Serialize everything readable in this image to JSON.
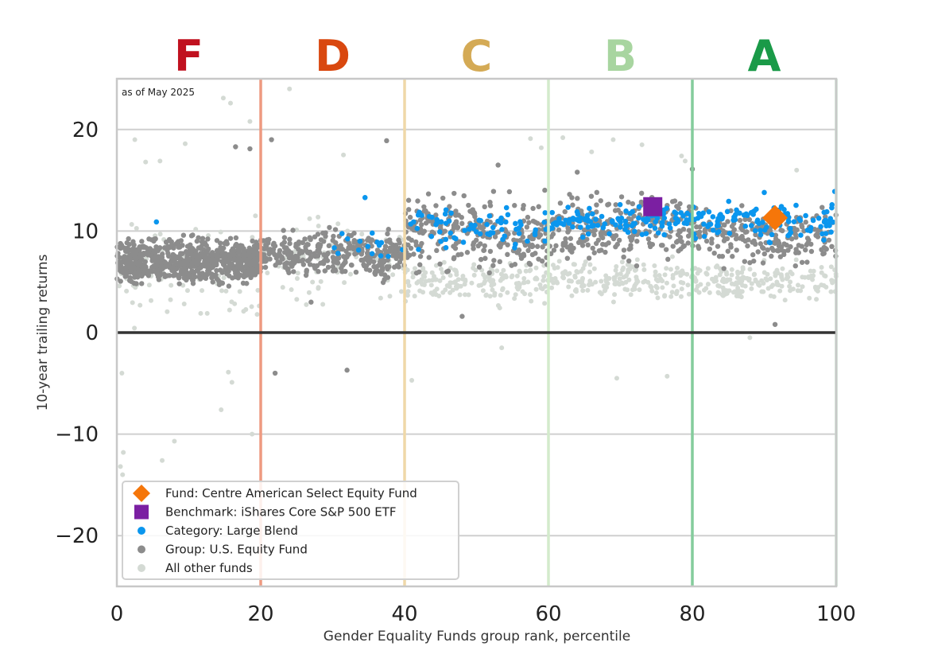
{
  "chart_data": {
    "type": "scatter",
    "annotation": "as of May 2025",
    "xlabel": "Gender Equality Funds group rank, percentile",
    "ylabel": "10-year trailing returns",
    "xlim": [
      0,
      100
    ],
    "ylim": [
      -25,
      25
    ],
    "x_ticks": [
      0,
      20,
      40,
      60,
      80,
      100
    ],
    "y_ticks": [
      -20,
      -10,
      0,
      10,
      20
    ],
    "grid": "horizontal",
    "legend_position": "lower-left",
    "grade_bands": [
      {
        "label": "F",
        "from": 0,
        "to": 20,
        "color": "#c0111f"
      },
      {
        "label": "D",
        "from": 20,
        "to": 40,
        "color": "#d9480f"
      },
      {
        "label": "C",
        "from": 40,
        "to": 60,
        "color": "#d4aa55"
      },
      {
        "label": "B",
        "from": 60,
        "to": 80,
        "color": "#a8d5a0"
      },
      {
        "label": "A",
        "from": 80,
        "to": 100,
        "color": "#1a9a48"
      }
    ],
    "band_lines": [
      {
        "x": 20,
        "color": "#ee9a80"
      },
      {
        "x": 40,
        "color": "#efd8a8"
      },
      {
        "x": 60,
        "color": "#d3ebcc"
      },
      {
        "x": 80,
        "color": "#84cc9c"
      },
      {
        "x": 100,
        "color": "#c8e2cf"
      }
    ],
    "series": [
      {
        "name": "Fund: Centre American Select Equity Fund",
        "marker": "diamond",
        "color": "#f5760a",
        "points": [
          [
            91.5,
            11.3
          ]
        ]
      },
      {
        "name": "Benchmark: iShares Core S&P 500 ETF",
        "marker": "square",
        "color": "#7b1fa2",
        "points": [
          [
            74.5,
            12.4
          ]
        ]
      },
      {
        "name": "Category: Large Blend",
        "marker": "dot",
        "color": "#0a96ee",
        "clusters": [
          {
            "x": [
              29,
              40
            ],
            "y": [
              6,
              10.5
            ],
            "n": 14
          },
          {
            "x": [
              40,
              60
            ],
            "y": [
              7.5,
              13
            ],
            "n": 70
          },
          {
            "x": [
              60,
              80
            ],
            "y": [
              9,
              13
            ],
            "n": 110
          },
          {
            "x": [
              80,
              100
            ],
            "y": [
              8.5,
              13.5
            ],
            "n": 110
          }
        ],
        "points": [
          [
            5.5,
            10.9
          ],
          [
            34.5,
            13.3
          ],
          [
            35.5,
            9.8
          ],
          [
            86,
            11.6
          ],
          [
            90,
            13.8
          ],
          [
            99.8,
            13.9
          ]
        ]
      },
      {
        "name": "Group: U.S. Equity Fund",
        "marker": "dot",
        "color": "#8c8c8c",
        "clusters": [
          {
            "x": [
              0,
              20
            ],
            "y": [
              4,
              10
            ],
            "n": 700
          },
          {
            "x": [
              20,
              40
            ],
            "y": [
              4.5,
              11
            ],
            "n": 330
          },
          {
            "x": [
              40,
              60
            ],
            "y": [
              4.5,
              15
            ],
            "n": 260
          },
          {
            "x": [
              60,
              80
            ],
            "y": [
              6,
              15
            ],
            "n": 230
          },
          {
            "x": [
              80,
              100
            ],
            "y": [
              5.5,
              13
            ],
            "n": 200
          }
        ],
        "points": [
          [
            16.5,
            18.3
          ],
          [
            18.5,
            18.1
          ],
          [
            21.5,
            19
          ],
          [
            22,
            -4
          ],
          [
            32,
            -3.7
          ],
          [
            37.5,
            18.9
          ],
          [
            91.5,
            0.8
          ],
          [
            48,
            1.6
          ],
          [
            53,
            16.5
          ],
          [
            64,
            15.8
          ],
          [
            80,
            16.1
          ],
          [
            27,
            3
          ]
        ]
      },
      {
        "name": "All other funds",
        "marker": "dot",
        "color": "#d4dad4",
        "clusters": [
          {
            "x": [
              0,
              20
            ],
            "y": [
              -1,
              13
            ],
            "n": 90
          },
          {
            "x": [
              20,
              40
            ],
            "y": [
              1,
              13
            ],
            "n": 80
          },
          {
            "x": [
              40,
              60
            ],
            "y": [
              2,
              8
            ],
            "n": 170
          },
          {
            "x": [
              60,
              80
            ],
            "y": [
              2.5,
              8
            ],
            "n": 170
          },
          {
            "x": [
              80,
              100
            ],
            "y": [
              2.5,
              7.5
            ],
            "n": 180
          }
        ],
        "points": [
          [
            0.5,
            -13.2
          ],
          [
            0.8,
            -14
          ],
          [
            0.9,
            -11.8
          ],
          [
            0.7,
            -4
          ],
          [
            6.3,
            -12.6
          ],
          [
            8,
            -10.7
          ],
          [
            14.5,
            -7.6
          ],
          [
            15.5,
            -3.9
          ],
          [
            16,
            -4.9
          ],
          [
            18.8,
            -10
          ],
          [
            24,
            24
          ],
          [
            14.8,
            23.1
          ],
          [
            15.8,
            22.6
          ],
          [
            18.5,
            20.8
          ],
          [
            9.5,
            18.6
          ],
          [
            2.5,
            19
          ],
          [
            6,
            16.9
          ],
          [
            4,
            16.8
          ],
          [
            41,
            -4.7
          ],
          [
            53.5,
            -1.5
          ],
          [
            69.5,
            -4.5
          ],
          [
            76.5,
            -4.3
          ],
          [
            88,
            -0.5
          ],
          [
            31.5,
            17.5
          ],
          [
            59,
            18.2
          ],
          [
            62,
            19.2
          ],
          [
            69,
            19
          ],
          [
            73,
            18.5
          ],
          [
            79,
            16.9
          ],
          [
            94.5,
            16
          ],
          [
            57.5,
            19.1
          ],
          [
            66,
            17.8
          ],
          [
            78.5,
            17.4
          ]
        ]
      }
    ]
  }
}
